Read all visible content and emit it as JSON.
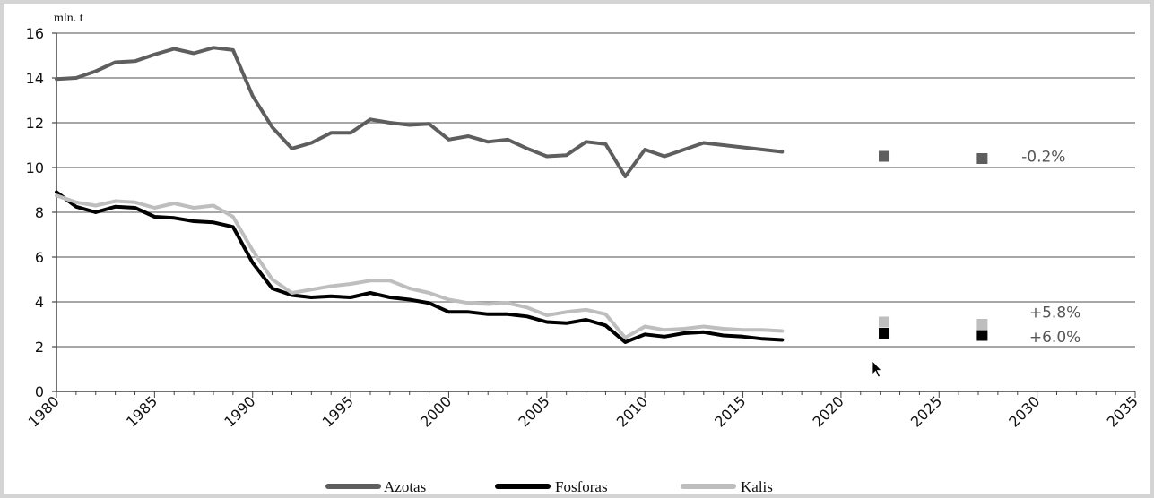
{
  "chart_data": {
    "type": "line",
    "title": "",
    "ylabel": "mln. t",
    "xlabel": "",
    "xlim": [
      1980,
      2035
    ],
    "ylim": [
      0,
      16
    ],
    "x_ticks": [
      1980,
      1985,
      1990,
      1995,
      2000,
      2005,
      2010,
      2015,
      2020,
      2025,
      2030,
      2035
    ],
    "y_ticks": [
      0,
      2,
      4,
      6,
      8,
      10,
      12,
      14,
      16
    ],
    "grid": "horizontal",
    "legend_position": "bottom",
    "series": [
      {
        "name": "Azotas",
        "color": "#5e5e5e",
        "x": [
          1980,
          1981,
          1982,
          1983,
          1984,
          1985,
          1986,
          1987,
          1988,
          1989,
          1990,
          1991,
          1992,
          1993,
          1994,
          1995,
          1996,
          1997,
          1998,
          1999,
          2000,
          2001,
          2002,
          2003,
          2004,
          2005,
          2006,
          2007,
          2008,
          2009,
          2010,
          2011,
          2012,
          2013,
          2014,
          2015,
          2016,
          2017
        ],
        "y": [
          13.95,
          14.0,
          14.3,
          14.7,
          14.75,
          15.05,
          15.3,
          15.1,
          15.35,
          15.25,
          13.2,
          11.8,
          10.85,
          11.1,
          11.55,
          11.55,
          12.15,
          12.0,
          11.9,
          11.95,
          11.25,
          11.4,
          11.15,
          11.25,
          10.85,
          10.5,
          10.55,
          11.15,
          11.05,
          9.6,
          10.8,
          10.5,
          10.8,
          11.1,
          11.0,
          10.9,
          10.8,
          10.7
        ]
      },
      {
        "name": "Fosforas",
        "color": "#000000",
        "x": [
          1980,
          1981,
          1982,
          1983,
          1984,
          1985,
          1986,
          1987,
          1988,
          1989,
          1990,
          1991,
          1992,
          1993,
          1994,
          1995,
          1996,
          1997,
          1998,
          1999,
          2000,
          2001,
          2002,
          2003,
          2004,
          2005,
          2006,
          2007,
          2008,
          2009,
          2010,
          2011,
          2012,
          2013,
          2014,
          2015,
          2016,
          2017
        ],
        "y": [
          8.9,
          8.25,
          8.0,
          8.25,
          8.2,
          7.8,
          7.75,
          7.6,
          7.55,
          7.35,
          5.75,
          4.6,
          4.3,
          4.2,
          4.25,
          4.2,
          4.4,
          4.2,
          4.1,
          3.95,
          3.55,
          3.55,
          3.45,
          3.45,
          3.35,
          3.1,
          3.05,
          3.2,
          2.95,
          2.2,
          2.55,
          2.45,
          2.6,
          2.65,
          2.5,
          2.45,
          2.35,
          2.3
        ]
      },
      {
        "name": "Kalis",
        "color": "#bebebe",
        "x": [
          1980,
          1981,
          1982,
          1983,
          1984,
          1985,
          1986,
          1987,
          1988,
          1989,
          1990,
          1991,
          1992,
          1993,
          1994,
          1995,
          1996,
          1997,
          1998,
          1999,
          2000,
          2001,
          2002,
          2003,
          2004,
          2005,
          2006,
          2007,
          2008,
          2009,
          2010,
          2011,
          2012,
          2013,
          2014,
          2015,
          2016,
          2017
        ],
        "y": [
          8.75,
          8.45,
          8.3,
          8.5,
          8.45,
          8.2,
          8.4,
          8.2,
          8.3,
          7.8,
          6.3,
          5.0,
          4.4,
          4.55,
          4.7,
          4.8,
          4.95,
          4.95,
          4.6,
          4.4,
          4.1,
          3.95,
          3.9,
          3.95,
          3.75,
          3.4,
          3.55,
          3.65,
          3.45,
          2.4,
          2.9,
          2.75,
          2.8,
          2.9,
          2.8,
          2.75,
          2.75,
          2.7
        ]
      }
    ],
    "forecast_points": [
      {
        "series": "Azotas",
        "x": [
          2022.2,
          2027.2
        ],
        "y": [
          10.5,
          10.4
        ]
      },
      {
        "series": "Kalis",
        "x": [
          2022.2,
          2027.2
        ],
        "y": [
          3.1,
          3.0
        ]
      },
      {
        "series": "Fosforas",
        "x": [
          2022.2,
          2027.2
        ],
        "y": [
          2.6,
          2.5
        ]
      }
    ],
    "annotations": [
      {
        "text": "-0.2%",
        "x": 2029.2,
        "y": 10.5
      },
      {
        "text": "+5.8%",
        "x": 2029.6,
        "y": 3.55
      },
      {
        "text": "+6.0%",
        "x": 2029.6,
        "y": 2.45
      }
    ]
  }
}
